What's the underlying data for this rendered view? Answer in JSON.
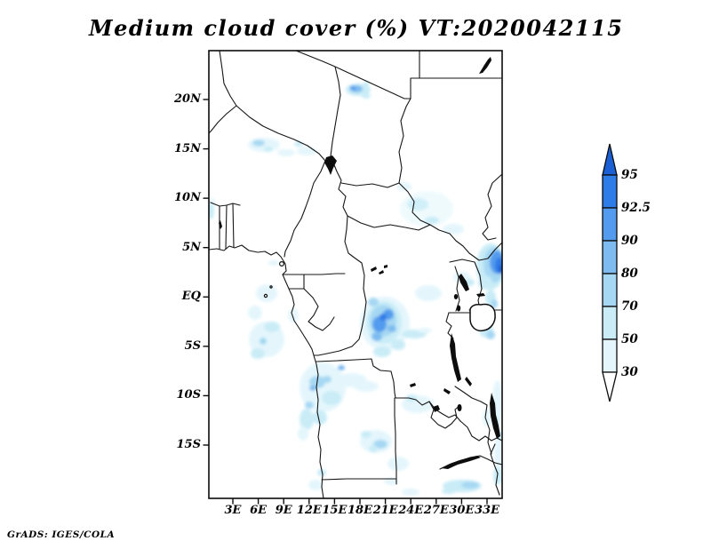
{
  "title": "Medium cloud cover (%) VT:2020042115",
  "credit": "GrADS: IGES/COLA",
  "axes": {
    "y_tick_labels": [
      "20N",
      "15N",
      "10N",
      "5N",
      "EQ",
      "5S",
      "10S",
      "15S"
    ],
    "x_tick_labels": [
      "3E",
      "6E",
      "9E",
      "12E",
      "15E",
      "18E",
      "21E",
      "24E",
      "27E",
      "30E",
      "33E"
    ]
  },
  "colorbar": {
    "tick_labels": [
      "95",
      "92.5",
      "90",
      "80",
      "70",
      "50",
      "30"
    ],
    "segment_colors_top_to_bottom": [
      "#1a5fd4",
      "#2e7ce8",
      "#539bee",
      "#7dbbf0",
      "#a6d8f3",
      "#c9ecf7",
      "#e4f6fc",
      "#ffffff"
    ]
  },
  "chart_data": {
    "type": "heatmap",
    "title": "Medium cloud cover (%) VT:2020042115",
    "variable": "Medium cloud cover",
    "units": "%",
    "valid_time": "2020042115",
    "projection": "lat-lon map of central Africa",
    "x_axis": {
      "tick_labels": [
        "3E",
        "6E",
        "9E",
        "12E",
        "15E",
        "18E",
        "21E",
        "24E",
        "27E",
        "30E",
        "33E"
      ],
      "range": "0E to 35E"
    },
    "y_axis": {
      "tick_labels": [
        "20N",
        "15N",
        "10N",
        "5N",
        "EQ",
        "5S",
        "10S",
        "15S"
      ],
      "range": "20S to 25N"
    },
    "shading_levels": [
      30,
      50,
      70,
      80,
      90,
      92.5,
      95
    ],
    "level_colors": [
      "#e4f6fc",
      "#c9ecf7",
      "#a6d8f3",
      "#7dbbf0",
      "#539bee",
      "#2e7ce8",
      "#1a5fd4"
    ],
    "legend_position": "right vertical colorbar with arrow caps",
    "notable_maxima": [
      {
        "location": "eastern edge near Kenya, ~34E 1N",
        "value_pct": 95
      },
      {
        "location": "central DR Congo, ~20E 3S",
        "value_pct": 92.5
      },
      {
        "location": "S Libya / N Chad border, ~17E 21N",
        "value_pct": 90
      },
      {
        "location": "Angola coast, ~13E 9S",
        "value_pct": 80
      },
      {
        "location": "Niger, ~6E 15N",
        "value_pct": 70
      },
      {
        "location": "Zambia / Malawi, ~29E 19S",
        "value_pct": 70
      }
    ],
    "background_value": "white below 30%"
  }
}
